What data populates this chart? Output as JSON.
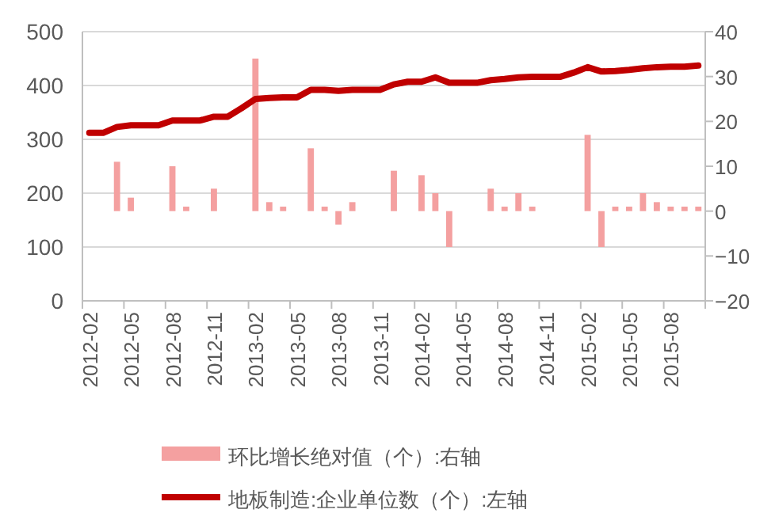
{
  "chart_data": {
    "type": "bar",
    "categories": [
      "2012-02",
      null,
      null,
      "2012-05",
      null,
      null,
      "2012-08",
      null,
      null,
      "2012-11",
      null,
      null,
      "2013-02",
      null,
      null,
      "2013-05",
      null,
      null,
      "2013-08",
      null,
      null,
      "2013-11",
      null,
      null,
      "2014-02",
      null,
      null,
      "2014-05",
      null,
      null,
      "2014-08",
      null,
      null,
      "2014-11",
      null,
      null,
      "2015-02",
      null,
      null,
      "2015-05",
      null,
      null,
      "2015-08",
      null,
      null
    ],
    "series": [
      {
        "name": "环比增长绝对值（个）:右轴",
        "axis": "y2",
        "color": "#f4a0a0",
        "values": [
          null,
          0,
          11,
          3,
          0,
          0,
          10,
          1,
          0,
          5,
          0,
          0,
          34,
          2,
          1,
          0,
          14,
          1,
          -3,
          2,
          0,
          0,
          9,
          0,
          8,
          4,
          -8,
          0,
          0,
          5,
          1,
          4,
          1,
          0,
          0,
          0,
          17,
          -8,
          1,
          1,
          4,
          2,
          1,
          1,
          1
        ]
      },
      {
        "name": "地板制造:企业单位数（个）:左轴",
        "type": "line",
        "color": "#c00000",
        "values": [
          312,
          312,
          323,
          326,
          326,
          326,
          335,
          335,
          335,
          342,
          342,
          358,
          375,
          377,
          378,
          378,
          392,
          392,
          390,
          392,
          392,
          392,
          402,
          407,
          407,
          415,
          405,
          405,
          405,
          410,
          412,
          415,
          416,
          416,
          416,
          424,
          434,
          426,
          427,
          429,
          432,
          434,
          435,
          435,
          437
        ]
      }
    ],
    "ylim": [
      0,
      500
    ],
    "yticks": [
      0,
      100,
      200,
      300,
      400,
      500
    ],
    "y2lim": [
      -20,
      40
    ],
    "y2ticks": [
      {
        "value": -20,
        "label": "−20"
      },
      {
        "value": -10,
        "label": "−10"
      },
      0,
      10,
      20,
      30,
      40
    ],
    "grid": "y",
    "legend": "bottom"
  }
}
